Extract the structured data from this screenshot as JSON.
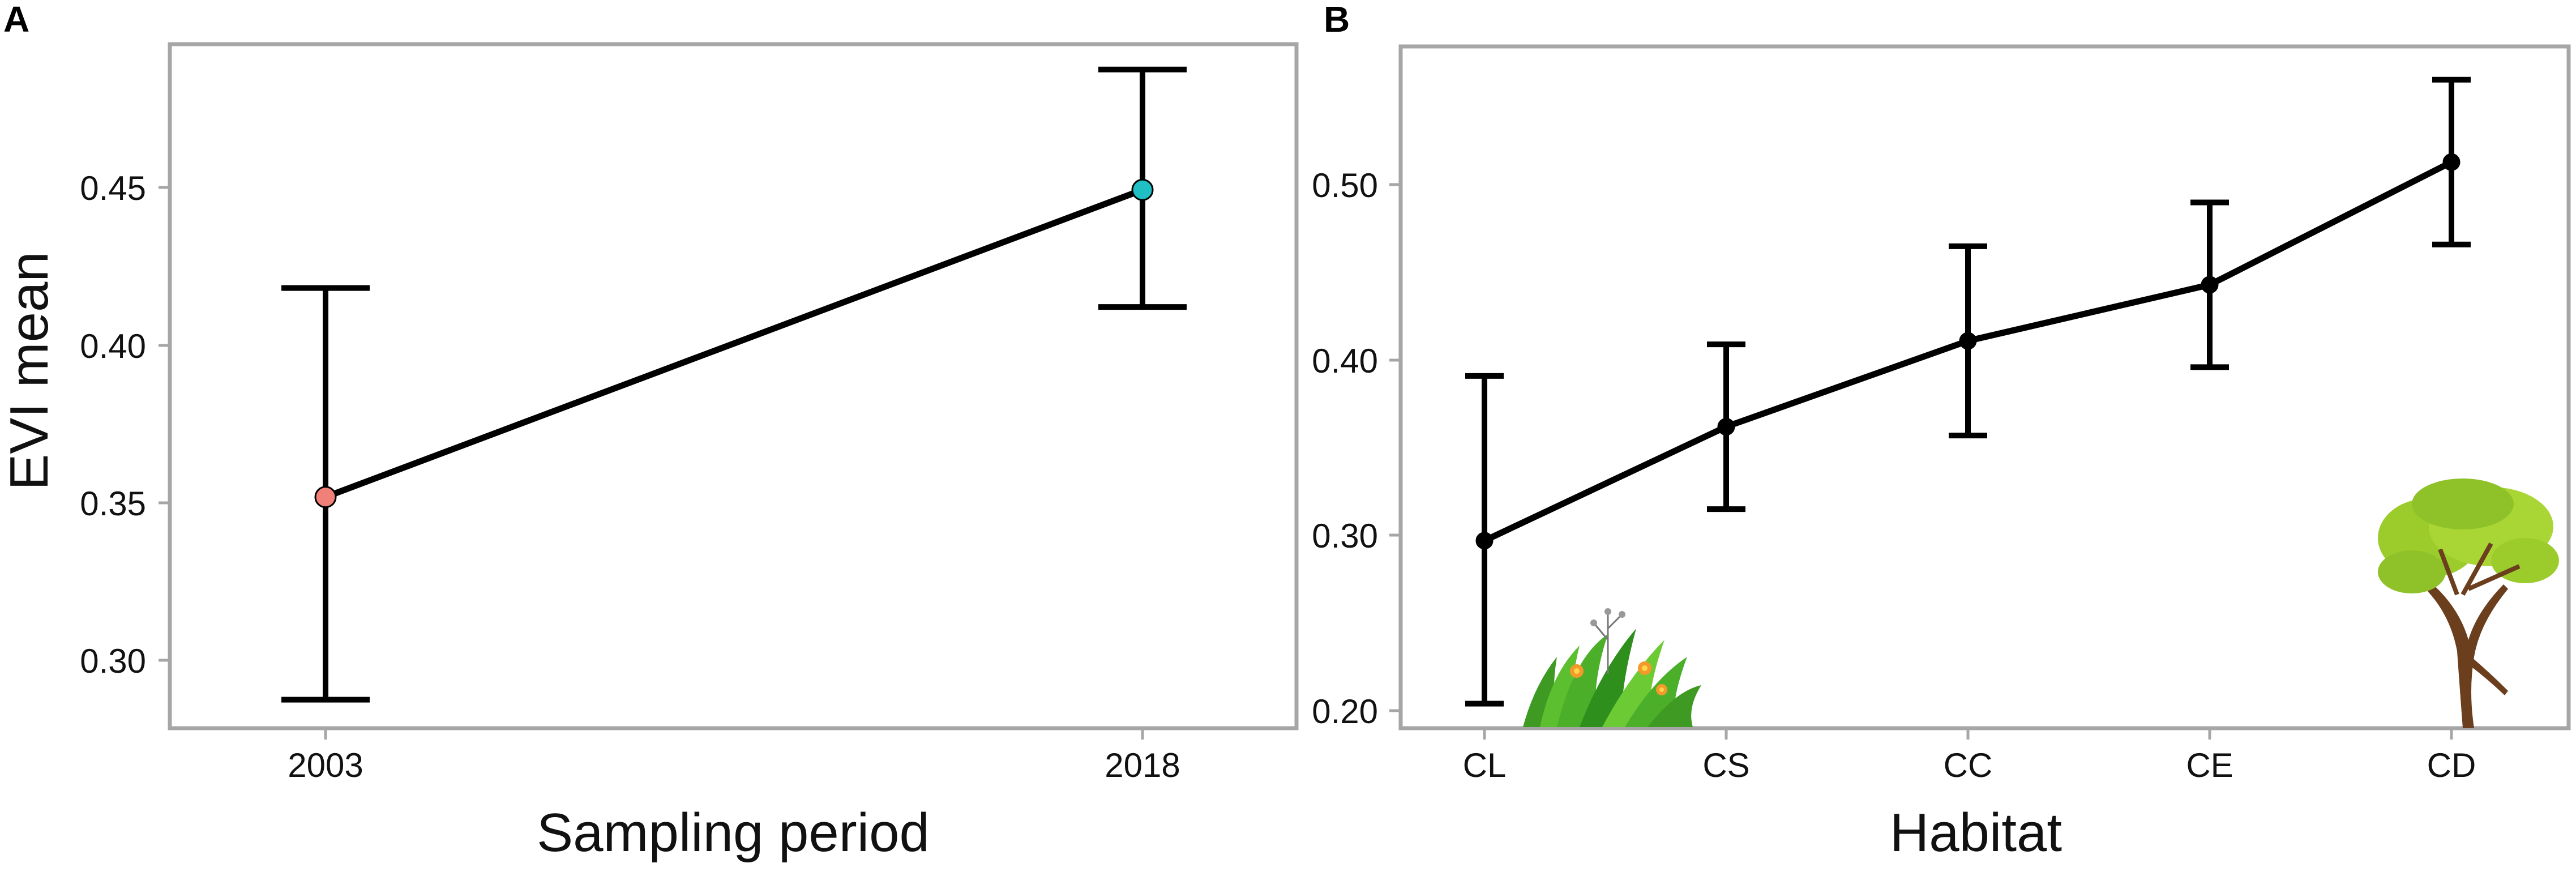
{
  "chart_data": [
    {
      "panel_label": "A",
      "type": "line",
      "xlabel": "Sampling period",
      "ylabel": "EVI mean",
      "categories": [
        "2003",
        "2018"
      ],
      "values": [
        0.351,
        0.448
      ],
      "error_lower": [
        0.287,
        0.411
      ],
      "error_upper": [
        0.417,
        0.486
      ],
      "point_colors": [
        "#f08078",
        "#1fbfc3"
      ],
      "ylim": [
        0.278,
        0.494
      ],
      "yticks": [
        0.3,
        0.35,
        0.4,
        0.45
      ],
      "ytick_labels": [
        "0.30",
        "0.35",
        "0.40",
        "0.45"
      ],
      "grid": false,
      "legend": false
    },
    {
      "panel_label": "B",
      "type": "line",
      "xlabel": "Habitat",
      "ylabel": "",
      "categories": [
        "CL",
        "CS",
        "CC",
        "CE",
        "CD"
      ],
      "values": [
        0.297,
        0.362,
        0.411,
        0.443,
        0.513
      ],
      "error_lower": [
        0.204,
        0.315,
        0.357,
        0.396,
        0.466
      ],
      "error_upper": [
        0.391,
        0.409,
        0.465,
        0.49,
        0.56
      ],
      "point_colors": [
        "#000000",
        "#000000",
        "#000000",
        "#000000",
        "#000000"
      ],
      "ylim": [
        0.19,
        0.579
      ],
      "yticks": [
        0.2,
        0.3,
        0.4,
        0.5
      ],
      "ytick_labels": [
        "0.20",
        "0.30",
        "0.40",
        "0.50"
      ],
      "grid": false,
      "legend": false,
      "decorations": [
        "grass-illustration",
        "tree-illustration"
      ]
    }
  ],
  "colors": {
    "frame": "#a6a6a6",
    "line": "#000000",
    "grass": "#4caf2a",
    "tree_trunk": "#6b3f1e",
    "tree_leaves": "#9ccc2c"
  }
}
